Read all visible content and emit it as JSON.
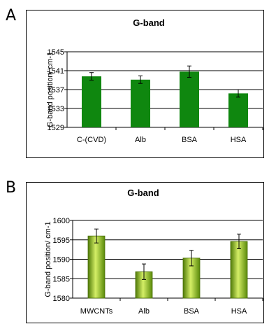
{
  "chart_data": [
    {
      "panel": "A",
      "type": "bar",
      "title": "G-band",
      "xlabel": "",
      "ylabel": "G-band position/ cm-1",
      "categories": [
        "C-(CVD)",
        "Alb",
        "BSA",
        "HSA"
      ],
      "values": [
        1539.8,
        1539.1,
        1540.8,
        1536.2
      ],
      "errors": [
        0.8,
        0.8,
        1.2,
        0.8
      ],
      "ylim": [
        1529,
        1545
      ],
      "yticks": [
        "1529",
        "1533",
        "1537",
        "1541",
        "1545"
      ],
      "grid": true,
      "bar_color": "#0f870f",
      "bar_style": "flat"
    },
    {
      "panel": "B",
      "type": "bar",
      "title": "G-band",
      "xlabel": "",
      "ylabel": "G-band position/ cm-1",
      "categories": [
        "MWCNTs",
        "Alb",
        "BSA",
        "HSA"
      ],
      "values": [
        1596.0,
        1586.8,
        1590.3,
        1594.6
      ],
      "errors": [
        1.8,
        2.0,
        2.0,
        1.9
      ],
      "ylim": [
        1580,
        1600
      ],
      "yticks": [
        "1580",
        "1585",
        "1590",
        "1595",
        "1600"
      ],
      "grid": true,
      "bar_color": "#8fbf1a",
      "bar_style": "gradient"
    }
  ]
}
